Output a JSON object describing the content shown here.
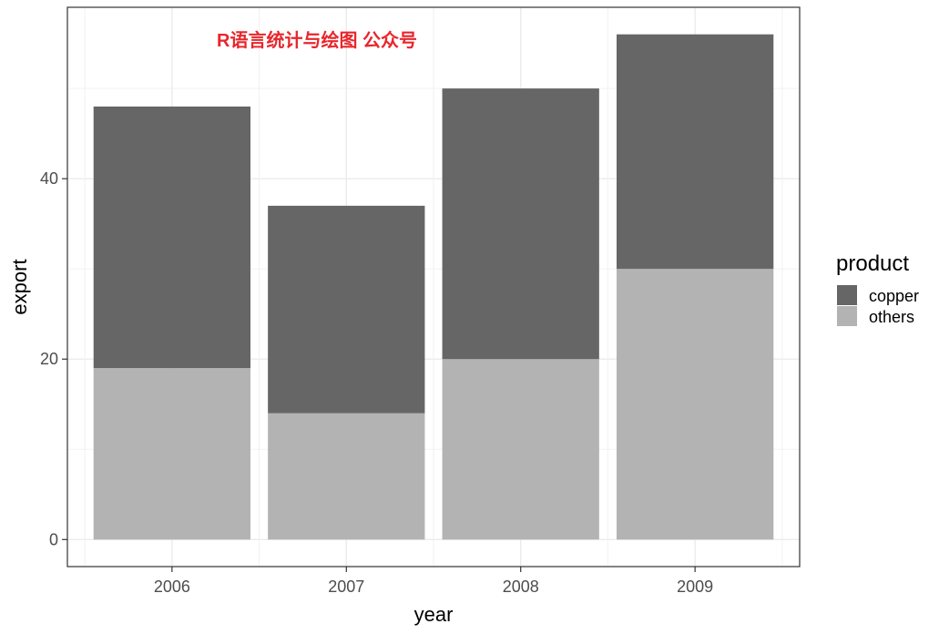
{
  "chart_data": {
    "type": "bar",
    "stacked": true,
    "categories": [
      "2006",
      "2007",
      "2008",
      "2009"
    ],
    "series": [
      {
        "name": "copper",
        "values": [
          29,
          23,
          30,
          26
        ],
        "color": "#666666"
      },
      {
        "name": "others",
        "values": [
          19,
          14,
          20,
          30
        ],
        "color": "#b3b3b3"
      }
    ],
    "xlabel": "year",
    "ylabel": "export",
    "ylim": [
      -3,
      59
    ],
    "yticks": [
      0,
      20,
      40
    ],
    "grid": true,
    "legend": {
      "title": "product",
      "position": "right"
    },
    "annotation": {
      "text": "R语言统计与绘图 公众号",
      "color": "#e8262c"
    }
  }
}
